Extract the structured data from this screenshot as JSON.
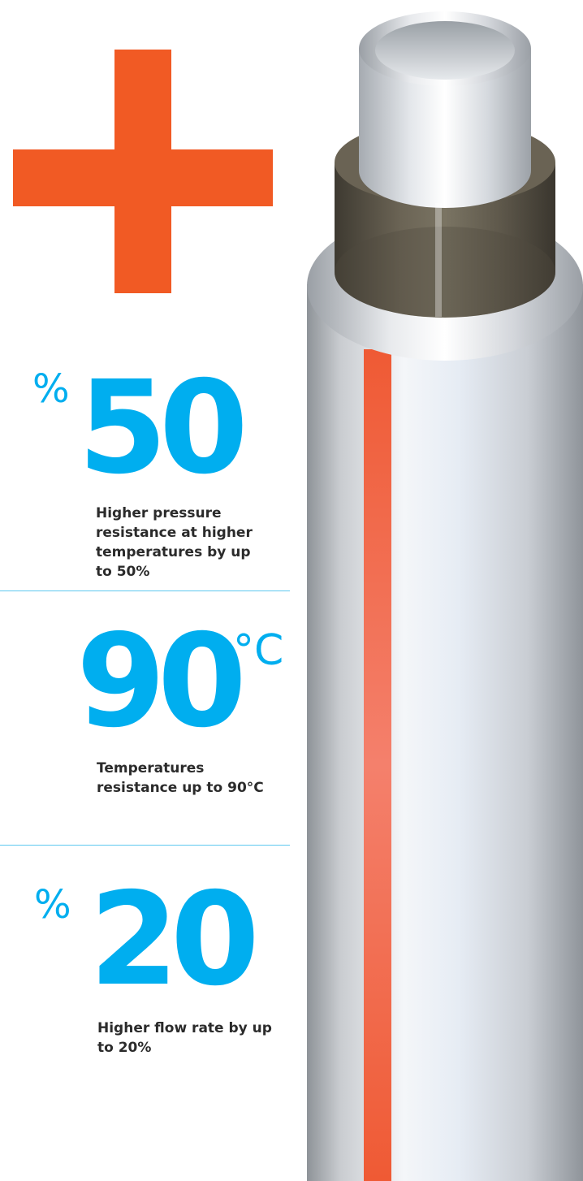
{
  "stats": [
    {
      "value": "50",
      "unit": "%",
      "description": "Higher pressure resistance at higher temperatures by up to 50%"
    },
    {
      "value": "90",
      "unit": "°C",
      "description": "Temperatures resistance up to 90°C"
    },
    {
      "value": "20",
      "unit": "%",
      "description": "Higher flow rate by up to 20%"
    }
  ],
  "colors": {
    "accent_orange": "#f15a24",
    "accent_blue": "#00aeef",
    "pipe_stripe": "#f15a24",
    "inner_layer": "#5a5346"
  },
  "icons": {
    "plus": "plus-icon",
    "pipe": "pipe-illustration"
  }
}
